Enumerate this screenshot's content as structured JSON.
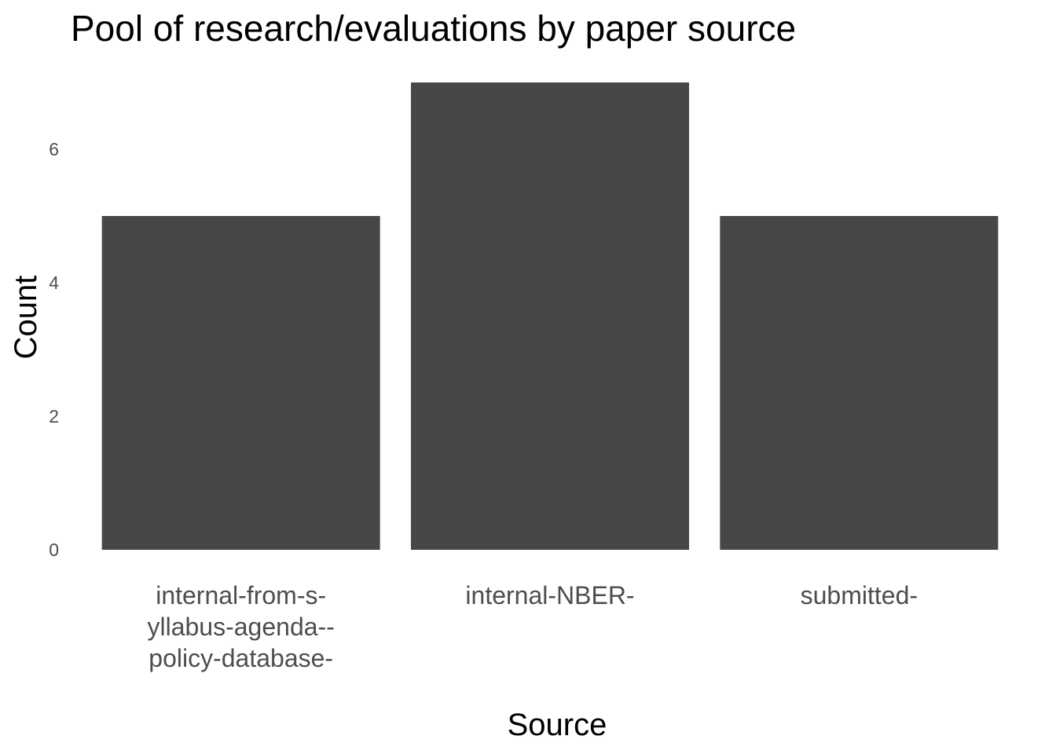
{
  "chart_data": {
    "type": "bar",
    "title": "Pool of research/evaluations by paper source",
    "xlabel": "Source",
    "ylabel": "Count",
    "categories": [
      [
        "internal-from-s-",
        "yllabus-agenda--",
        "policy-database-"
      ],
      [
        "internal-NBER-"
      ],
      [
        "submitted-"
      ]
    ],
    "values": [
      5,
      7,
      5
    ],
    "yticks": [
      0,
      2,
      4,
      6
    ],
    "ylim": [
      0,
      7
    ],
    "grid": false,
    "bar_color": "#474747"
  }
}
